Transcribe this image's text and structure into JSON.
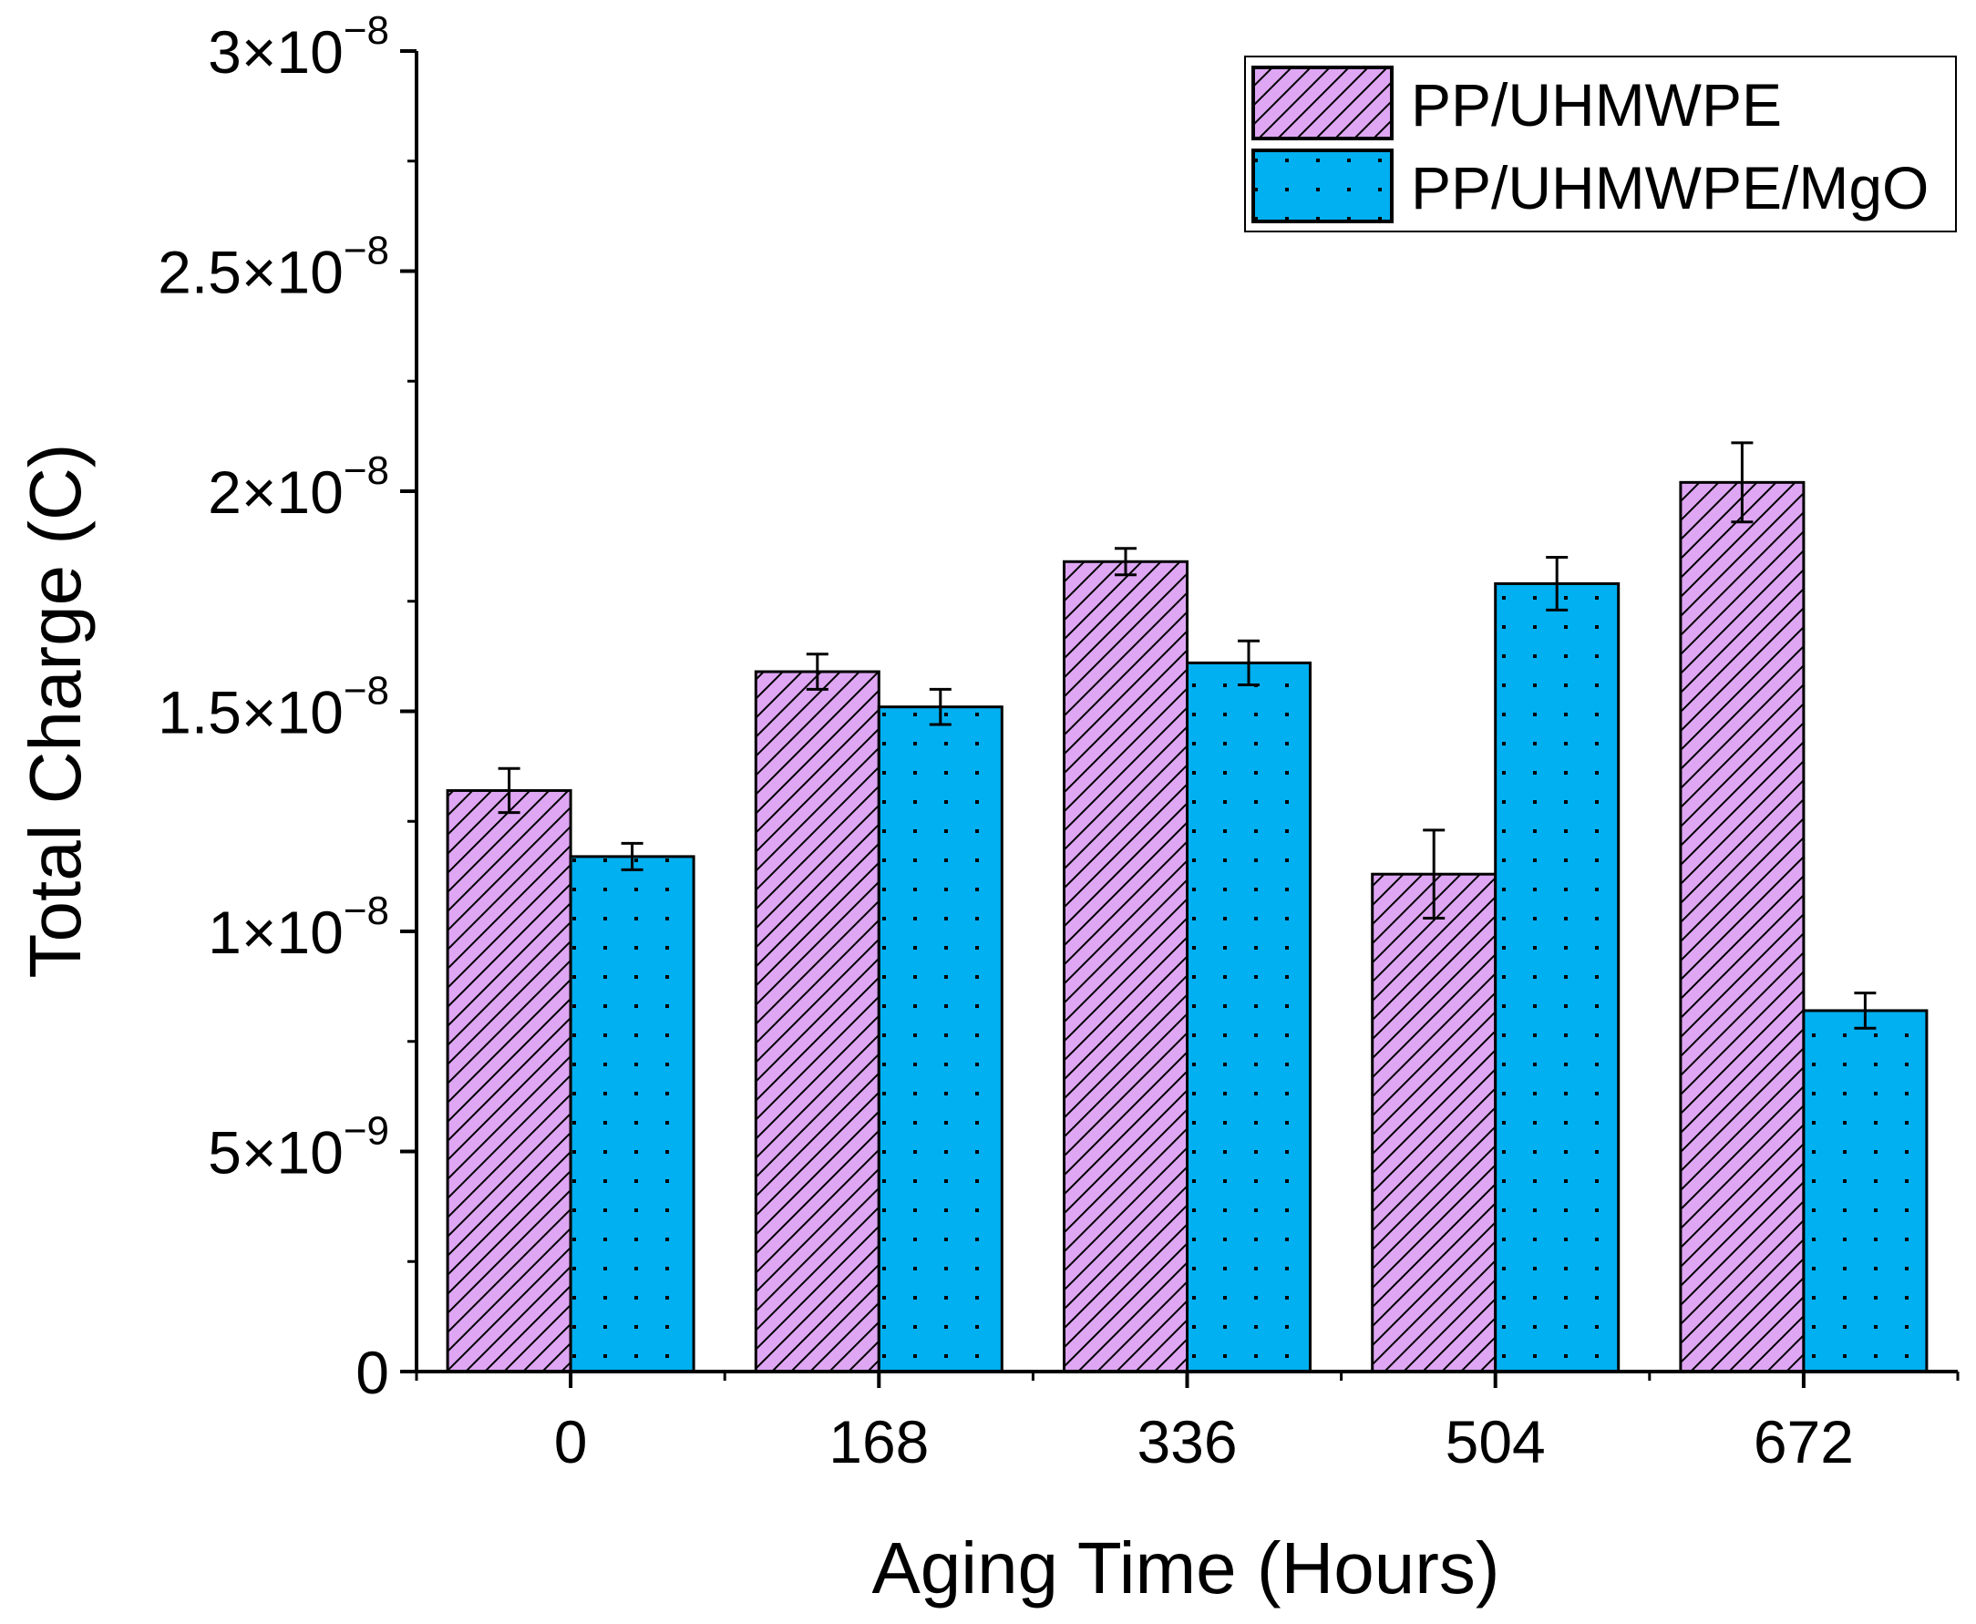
{
  "chart_data": {
    "type": "bar",
    "title": "",
    "xlabel": "Aging Time (Hours)",
    "ylabel": "Total Charge (C)",
    "categories": [
      "0",
      "168",
      "336",
      "504",
      "672"
    ],
    "ylim": [
      0,
      3e-08
    ],
    "yticks": [
      {
        "value": 0,
        "mantissa": "0",
        "times": "",
        "base": "",
        "exponent": ""
      },
      {
        "value": 5e-09,
        "mantissa": "5",
        "times": "×",
        "base": "10",
        "exponent": "−9"
      },
      {
        "value": 1e-08,
        "mantissa": "1",
        "times": "×",
        "base": "10",
        "exponent": "−8"
      },
      {
        "value": 1.5e-08,
        "mantissa": "1.5",
        "times": "×",
        "base": "10",
        "exponent": "−8"
      },
      {
        "value": 2e-08,
        "mantissa": "2",
        "times": "×",
        "base": "10",
        "exponent": "−8"
      },
      {
        "value": 2.5e-08,
        "mantissa": "2.5",
        "times": "×",
        "base": "10",
        "exponent": "−8"
      },
      {
        "value": 3e-08,
        "mantissa": "3",
        "times": "×",
        "base": "10",
        "exponent": "−8"
      }
    ],
    "series": [
      {
        "name": "PP/UHMWPE",
        "color": "#dea6f3",
        "pattern": "hatch",
        "values": [
          1.32e-08,
          1.59e-08,
          1.84e-08,
          1.13e-08,
          2.02e-08
        ],
        "errors": [
          5e-10,
          4e-10,
          3e-10,
          1e-09,
          9e-10
        ]
      },
      {
        "name": "PP/UHMWPE/MgO",
        "color": "#00b0f0",
        "pattern": "dots",
        "values": [
          1.17e-08,
          1.51e-08,
          1.61e-08,
          1.79e-08,
          8.2e-09
        ],
        "errors": [
          3e-10,
          4e-10,
          5e-10,
          6e-10,
          4e-10
        ]
      }
    ],
    "legend": {
      "position": "top-right"
    },
    "grid": false
  }
}
